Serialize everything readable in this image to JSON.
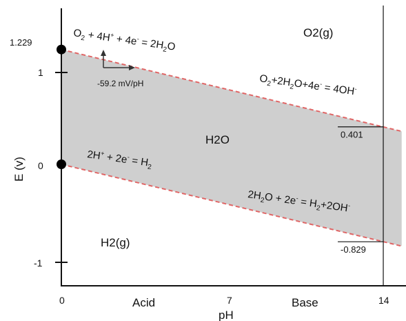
{
  "chart_data": {
    "type": "line",
    "xlabel": "pH",
    "ylabel": "E (v)",
    "xlim": [
      0,
      14.8
    ],
    "ylim": [
      -1.25,
      1.55
    ],
    "x_ticks": [
      "0",
      "7",
      "14"
    ],
    "y_ticks": [
      "1",
      "0",
      "-1"
    ],
    "x_region_labels": [
      "Acid",
      "Base"
    ],
    "series": [
      {
        "x": [
          0,
          14.8
        ],
        "y": [
          1.229,
          0.353
        ],
        "color": "#e06666"
      },
      {
        "x": [
          0,
          14.8
        ],
        "y": [
          0.0,
          -0.876
        ],
        "color": "#e06666"
      }
    ],
    "points": [
      {
        "x": 0,
        "y": 1.229,
        "label": "1.229"
      },
      {
        "x": 0,
        "y": 0.0,
        "label": ""
      }
    ],
    "fill_color": "#cfcfcf",
    "point_color": "#000000",
    "markers": [
      {
        "y": 0.401,
        "label": "0.401"
      },
      {
        "y": -0.829,
        "label": "-0.829"
      }
    ]
  },
  "labels": {
    "region_o2": "O2(g)",
    "region_h2o": "H2O",
    "region_h2": "H2(g)",
    "slope": "-59.2 mV/pH",
    "slope_color": "#2b3f8f"
  },
  "equations": {
    "o2_acid": [
      {
        "t": "O"
      },
      {
        "t": "2",
        "s": "sub"
      },
      {
        "t": " + 4H"
      },
      {
        "t": "+",
        "s": "sup"
      },
      {
        "t": " + 4e"
      },
      {
        "t": "-",
        "s": "sup"
      },
      {
        "t": " = 2H"
      },
      {
        "t": "2",
        "s": "sub"
      },
      {
        "t": "O"
      }
    ],
    "o2_base": [
      {
        "t": "O"
      },
      {
        "t": "2",
        "s": "sub"
      },
      {
        "t": "+2H"
      },
      {
        "t": "2",
        "s": "sub"
      },
      {
        "t": "O+4e"
      },
      {
        "t": "-",
        "s": "sup"
      },
      {
        "t": " = 4OH"
      },
      {
        "t": "-",
        "s": "sup"
      }
    ],
    "h2_acid": [
      {
        "t": "2H"
      },
      {
        "t": "+",
        "s": "sup"
      },
      {
        "t": " + 2e"
      },
      {
        "t": "-",
        "s": "sup"
      },
      {
        "t": " = H"
      },
      {
        "t": "2",
        "s": "sub"
      }
    ],
    "h2_base": [
      {
        "t": "2H"
      },
      {
        "t": "2",
        "s": "sub"
      },
      {
        "t": "O + 2e"
      },
      {
        "t": "-",
        "s": "sup"
      },
      {
        "t": " = H"
      },
      {
        "t": "2",
        "s": "sub"
      },
      {
        "t": "+2OH"
      },
      {
        "t": "-",
        "s": "sup"
      }
    ]
  }
}
